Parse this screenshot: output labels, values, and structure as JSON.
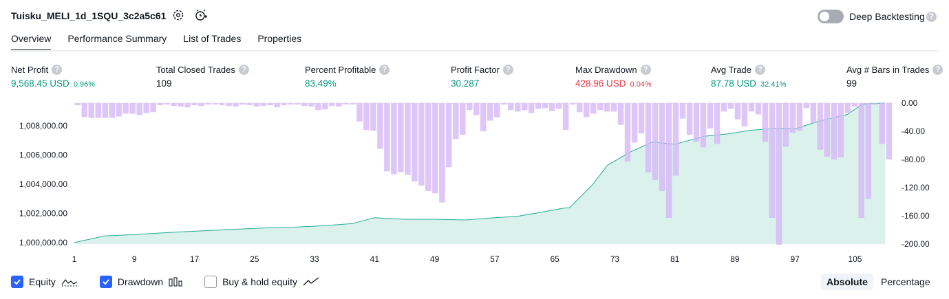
{
  "header": {
    "title": "Tuisku_MELI_1d_1SQU_3c2a5c61",
    "deep_backtesting_label": "Deep Backtesting",
    "help_glyph": "?"
  },
  "tabs": [
    {
      "label": "Overview"
    },
    {
      "label": "Performance Summary"
    },
    {
      "label": "List of Trades"
    },
    {
      "label": "Properties"
    }
  ],
  "metrics": [
    {
      "label": "Net Profit",
      "value": "9,568.45 USD",
      "pct": "0.96%",
      "color": "green"
    },
    {
      "label": "Total Closed Trades",
      "value": "109",
      "pct": "",
      "color": "dark"
    },
    {
      "label": "Percent Profitable",
      "value": "83.49%",
      "pct": "",
      "color": "green"
    },
    {
      "label": "Profit Factor",
      "value": "30.287",
      "pct": "",
      "color": "green"
    },
    {
      "label": "Max Drawdown",
      "value": "428.96 USD",
      "pct": "0.04%",
      "color": "red"
    },
    {
      "label": "Avg Trade",
      "value": "87.78 USD",
      "pct": "32.41%",
      "color": "green"
    },
    {
      "label": "Avg # Bars in Trades",
      "value": "99",
      "pct": "",
      "color": "dark"
    }
  ],
  "legend": {
    "equity": "Equity",
    "drawdown": "Drawdown",
    "buy_hold": "Buy & hold equity"
  },
  "scale_toggle": {
    "absolute": "Absolute",
    "percentage": "Percentage"
  },
  "colors": {
    "equity_line": "#22ab94",
    "equity_fill": "#d5efe8",
    "drawdown_bar": "#d6b8f7",
    "checkbox": "#2962ff",
    "profit": "#089981",
    "loss": "#f23645"
  },
  "chart_data": {
    "type": "area",
    "x_ticks": [
      "1",
      "9",
      "17",
      "25",
      "33",
      "41",
      "49",
      "57",
      "65",
      "73",
      "81",
      "89",
      "97",
      "105"
    ],
    "left_axis": {
      "ticks": [
        "1,000,000.00",
        "1,002,000.00",
        "1,004,000.00",
        "1,006,000.00",
        "1,008,000.00"
      ],
      "ylim": [
        999900,
        1009568
      ]
    },
    "right_axis": {
      "ticks": [
        "0.00",
        "-40.00",
        "-80.00",
        "-120.00",
        "-160.00",
        "-200.00"
      ],
      "ylim": [
        -200,
        0
      ]
    },
    "x_range": [
      1,
      110
    ],
    "series": [
      {
        "name": "Equity",
        "type": "area",
        "x": [
          1,
          5,
          9,
          14,
          18,
          22,
          26,
          30,
          34,
          38,
          41,
          45,
          49,
          53,
          57,
          60,
          64,
          66,
          67,
          70,
          72,
          75,
          78,
          81,
          85,
          88,
          91,
          95,
          97,
          100,
          104,
          106,
          109
        ],
        "values": [
          1000000,
          1000450,
          1000550,
          1000700,
          1000800,
          1000900,
          1001000,
          1001050,
          1001150,
          1001300,
          1001700,
          1001600,
          1001600,
          1001550,
          1001700,
          1001800,
          1002150,
          1002350,
          1002400,
          1003950,
          1005300,
          1006200,
          1006900,
          1006750,
          1007300,
          1007450,
          1007700,
          1007850,
          1007800,
          1008300,
          1008800,
          1009500,
          1009568
        ]
      },
      {
        "name": "Drawdown",
        "type": "bar",
        "values": [
          -3,
          -20,
          -21,
          -21,
          -21,
          -21,
          -19,
          -15,
          -15,
          -17,
          -14,
          -13,
          -3,
          -2,
          -4,
          -5,
          -6,
          -3,
          -4,
          -2,
          -2,
          -3,
          -4,
          -5,
          -2,
          -3,
          -5,
          -4,
          -3,
          -6,
          -3,
          -2,
          -2,
          -4,
          -5,
          -10,
          -9,
          -4,
          -5,
          -2,
          -2,
          -26,
          -38,
          -39,
          -65,
          -97,
          -101,
          -98,
          -102,
          -111,
          -117,
          -125,
          -128,
          -141,
          -91,
          -51,
          -45,
          -10,
          -17,
          -40,
          -25,
          -20,
          -2,
          -10,
          -12,
          -10,
          -14,
          -8,
          -7,
          -11,
          -8,
          -38,
          -2,
          -13,
          -20,
          -15,
          -10,
          -12,
          -12,
          -31,
          -83,
          -56,
          -43,
          -98,
          -109,
          -125,
          -163,
          -103,
          -22,
          -45,
          -55,
          -63,
          -36,
          -58,
          -12,
          -8,
          -23,
          -33,
          -12,
          -16,
          -55,
          -163,
          -201,
          -62,
          -42,
          -39,
          -7,
          -28,
          -66,
          -76,
          -80,
          -77,
          -14,
          -5,
          -163,
          -136,
          -2,
          -58,
          -80
        ]
      }
    ]
  }
}
